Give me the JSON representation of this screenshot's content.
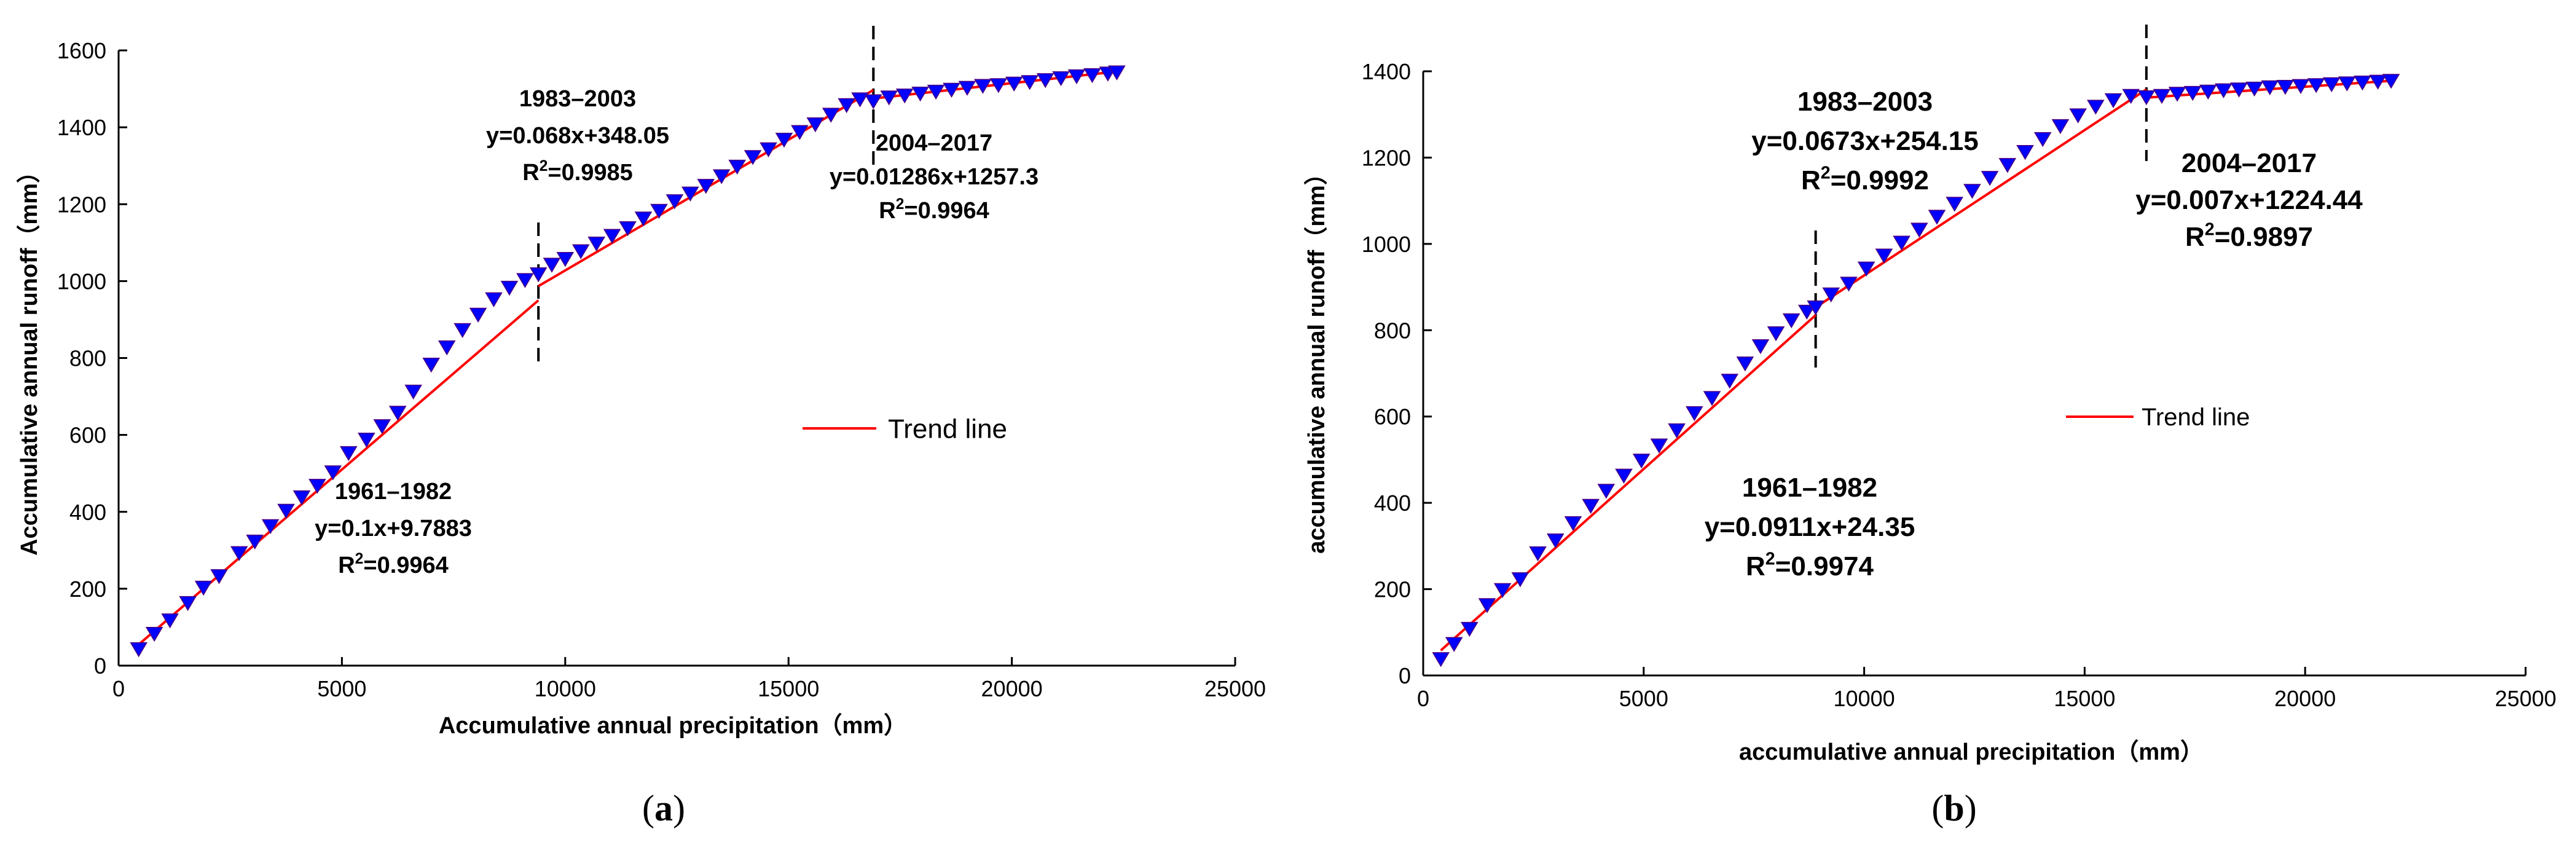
{
  "colors": {
    "trend": "#ff0000",
    "marker": "#0000ff",
    "marker_edge": "#4b0082",
    "axis": "#000000",
    "divider": "#000000"
  },
  "chart_data": [
    {
      "type": "scatter",
      "panel_label": "a",
      "xlabel": "Accumulative annual precipitation（mm）",
      "ylabel": "Accumulative annual runoff（mm）",
      "xlim": [
        0,
        25000
      ],
      "ylim": [
        0,
        1600
      ],
      "xticks": [
        0,
        5000,
        10000,
        15000,
        20000,
        25000
      ],
      "yticks": [
        0,
        200,
        400,
        600,
        800,
        1000,
        1200,
        1400,
        1600
      ],
      "grid": false,
      "legend": {
        "entries": [
          "Trend line"
        ],
        "position": "center-right"
      },
      "dividers": [
        9400,
        16900
      ],
      "series": [
        {
          "name": "",
          "x": [
            450,
            800,
            1150,
            1550,
            1900,
            2250,
            2700,
            3050,
            3400,
            3750,
            4100,
            4450,
            4800,
            5150,
            5550,
            5900,
            6250,
            6600,
            7000,
            7350,
            7700,
            8050,
            8400,
            8750,
            9100,
            9400,
            9700,
            10000,
            10350,
            10700,
            11050,
            11400,
            11750,
            12100,
            12450,
            12800,
            13150,
            13500,
            13850,
            14200,
            14550,
            14900,
            15250,
            15600,
            15950,
            16300,
            16600,
            16900,
            17250,
            17600,
            17950,
            18300,
            18650,
            19000,
            19350,
            19700,
            20050,
            20400,
            20750,
            21100,
            21450,
            21800,
            22150,
            22350
          ],
          "y": [
            45,
            85,
            120,
            165,
            205,
            235,
            295,
            325,
            365,
            405,
            440,
            470,
            505,
            555,
            590,
            625,
            660,
            715,
            785,
            830,
            875,
            915,
            955,
            985,
            1005,
            1020,
            1045,
            1060,
            1080,
            1100,
            1120,
            1140,
            1165,
            1185,
            1210,
            1230,
            1250,
            1275,
            1300,
            1325,
            1345,
            1370,
            1390,
            1410,
            1435,
            1460,
            1475,
            1470,
            1480,
            1485,
            1490,
            1495,
            1500,
            1505,
            1510,
            1512,
            1516,
            1520,
            1525,
            1530,
            1535,
            1538,
            1542,
            1545
          ]
        }
      ],
      "trend_segments": [
        {
          "x": [
            450,
            9400
          ],
          "y": [
            55,
            950
          ]
        },
        {
          "x": [
            9400,
            16900
          ],
          "y": [
            987,
            1497
          ]
        },
        {
          "x": [
            16900,
            22350
          ],
          "y": [
            1475,
            1545
          ]
        }
      ],
      "annotations": [
        {
          "period": "1961–1982",
          "equation": "y=0.1x+9.7883",
          "r2_label": "R",
          "r2_sup": "2",
          "r2_value": "=0.9964"
        },
        {
          "period": "1983–2003",
          "equation": "y=0.068x+348.05",
          "r2_label": "R",
          "r2_sup": "2",
          "r2_value": "=0.9985"
        },
        {
          "period": "2004–2017",
          "equation": "y=0.01286x+1257.3",
          "r2_label": "R",
          "r2_sup": "2",
          "r2_value": "=0.9964"
        }
      ]
    },
    {
      "type": "scatter",
      "panel_label": "b",
      "xlabel": "accumulative annual precipitation（mm）",
      "ylabel": "accumulative annual runoff（mm）",
      "xlim": [
        0,
        25000
      ],
      "ylim": [
        0,
        1400
      ],
      "xticks": [
        0,
        5000,
        10000,
        15000,
        20000,
        25000
      ],
      "yticks": [
        0,
        200,
        400,
        600,
        800,
        1000,
        1200,
        1400
      ],
      "grid": false,
      "legend": {
        "entries": [
          "Trend line"
        ],
        "position": "center-right"
      },
      "dividers": [
        8900,
        16400
      ],
      "series": [
        {
          "name": "",
          "x": [
            400,
            700,
            1050,
            1450,
            1800,
            2200,
            2600,
            3000,
            3400,
            3800,
            4150,
            4550,
            4950,
            5350,
            5750,
            6150,
            6550,
            6950,
            7300,
            7650,
            8000,
            8350,
            8700,
            8900,
            9250,
            9650,
            10050,
            10450,
            10850,
            11250,
            11650,
            12050,
            12450,
            12850,
            13250,
            13650,
            14050,
            14450,
            14850,
            15250,
            15650,
            16050,
            16400,
            16750,
            17100,
            17450,
            17800,
            18150,
            18500,
            18850,
            19200,
            19550,
            19900,
            20250,
            20600,
            20950,
            21300,
            21650,
            21950
          ],
          "y": [
            40,
            75,
            110,
            165,
            200,
            225,
            285,
            315,
            355,
            395,
            430,
            465,
            500,
            535,
            570,
            610,
            645,
            685,
            725,
            765,
            795,
            825,
            845,
            855,
            885,
            910,
            945,
            975,
            1005,
            1035,
            1065,
            1095,
            1125,
            1155,
            1185,
            1215,
            1245,
            1275,
            1300,
            1320,
            1335,
            1345,
            1342,
            1345,
            1350,
            1352,
            1355,
            1358,
            1360,
            1362,
            1365,
            1366,
            1368,
            1370,
            1372,
            1374,
            1376,
            1378,
            1380
          ]
        }
      ],
      "trend_segments": [
        {
          "x": [
            400,
            8900
          ],
          "y": [
            58,
            835
          ]
        },
        {
          "x": [
            8900,
            16400
          ],
          "y": [
            853,
            1358
          ]
        },
        {
          "x": [
            16400,
            21950
          ],
          "y": [
            1339,
            1378
          ]
        }
      ],
      "annotations": [
        {
          "period": "1961–1982",
          "equation": "y=0.0911x+24.35",
          "r2_label": "R",
          "r2_sup": "2",
          "r2_value": "=0.9974"
        },
        {
          "period": "1983–2003",
          "equation": "y=0.0673x+254.15",
          "r2_label": "R",
          "r2_sup": "2",
          "r2_value": "=0.9992"
        },
        {
          "period": "2004–2017",
          "equation": "y=0.007x+1224.44",
          "r2_label": "R",
          "r2_sup": "2",
          "r2_value": "=0.9897"
        }
      ]
    }
  ]
}
